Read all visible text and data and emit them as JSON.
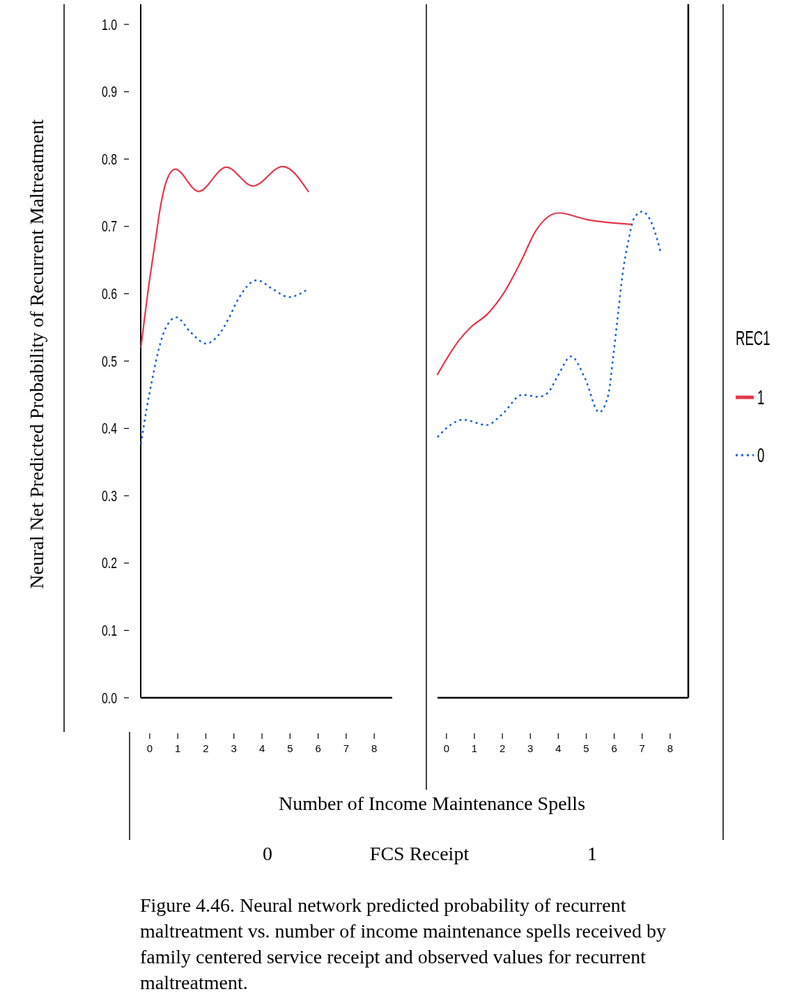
{
  "chart_data": [
    {
      "type": "line",
      "subtitle": "0",
      "ylabel": "Neural Net Predicted Probability of Recurrent Maltreatment",
      "xlabel": "Number of Income Maintenance Spells",
      "annotations": [
        "FCS Receipt",
        "Figure 4.46.  Neural network predicted probability of recurrent maltreatment vs. number of income maintenance spells received by family centered service receipt and observed values for recurrent maltreatment."
      ],
      "xlim": [
        -0.32,
        8.64
      ],
      "xticks": [
        0,
        1,
        2,
        3,
        4,
        5,
        6,
        7,
        8
      ],
      "ylim": [
        0,
        1.03
      ],
      "yticks": [
        {
          "value": 0,
          "label": "0.0"
        },
        0.1,
        0.2,
        0.3,
        0.4,
        0.5,
        0.6,
        0.7,
        0.8,
        0.9,
        {
          "value": 1,
          "label": "1.0"
        }
      ],
      "tick_labels": "xy",
      "legend": "right",
      "legend_title": "REC1",
      "grid": false,
      "series": [
        {
          "name": "1",
          "color": "#e8364a",
          "line_style": "solid",
          "x": [
            -0.31,
            0.0,
            0.21,
            0.37,
            0.62,
            0.91,
            1.74,
            2.73,
            3.68,
            4.74,
            5.65
          ],
          "values": [
            0.521,
            0.622,
            0.681,
            0.726,
            0.77,
            0.785,
            0.752,
            0.788,
            0.76,
            0.789,
            0.752
          ]
        },
        {
          "name": "0",
          "color": "#1a5fd6",
          "line_style": "dotted",
          "x": [
            -0.31,
            -0.11,
            0.11,
            0.33,
            0.58,
            0.95,
            1.45,
            2.01,
            2.44,
            2.81,
            3.14,
            3.82,
            4.38,
            4.96,
            5.57
          ],
          "values": [
            0.377,
            0.429,
            0.477,
            0.519,
            0.55,
            0.565,
            0.543,
            0.526,
            0.538,
            0.563,
            0.591,
            0.62,
            0.607,
            0.595,
            0.605
          ]
        }
      ]
    },
    {
      "type": "line",
      "subtitle": "1",
      "xlim": [
        -0.32,
        8.65
      ],
      "xticks": [
        0,
        1,
        2,
        3,
        4,
        5,
        6,
        7,
        8
      ],
      "ylim": [
        0,
        1.03
      ],
      "tick_labels": "x",
      "grid": false,
      "series": [
        {
          "color": "#e8364a",
          "line_style": "solid",
          "x": [
            -0.32,
            0.47,
            0.89,
            1.47,
            2.05,
            2.64,
            3.22,
            4.01,
            5.04,
            6.63
          ],
          "values": [
            0.48,
            0.532,
            0.551,
            0.57,
            0.601,
            0.646,
            0.695,
            0.72,
            0.71,
            0.703
          ]
        },
        {
          "color": "#1a5fd6",
          "line_style": "dotted",
          "x": [
            -0.32,
            0.14,
            0.6,
            1.43,
            1.97,
            2.72,
            3.3,
            3.63,
            3.97,
            4.46,
            4.96,
            5.46,
            5.79,
            5.96,
            6.13,
            6.29,
            6.5,
            6.71,
            7.0,
            7.37,
            7.66
          ],
          "values": [
            0.387,
            0.405,
            0.413,
            0.405,
            0.42,
            0.45,
            0.447,
            0.453,
            0.477,
            0.507,
            0.474,
            0.424,
            0.45,
            0.505,
            0.567,
            0.626,
            0.677,
            0.712,
            0.722,
            0.702,
            0.662
          ]
        }
      ]
    }
  ]
}
